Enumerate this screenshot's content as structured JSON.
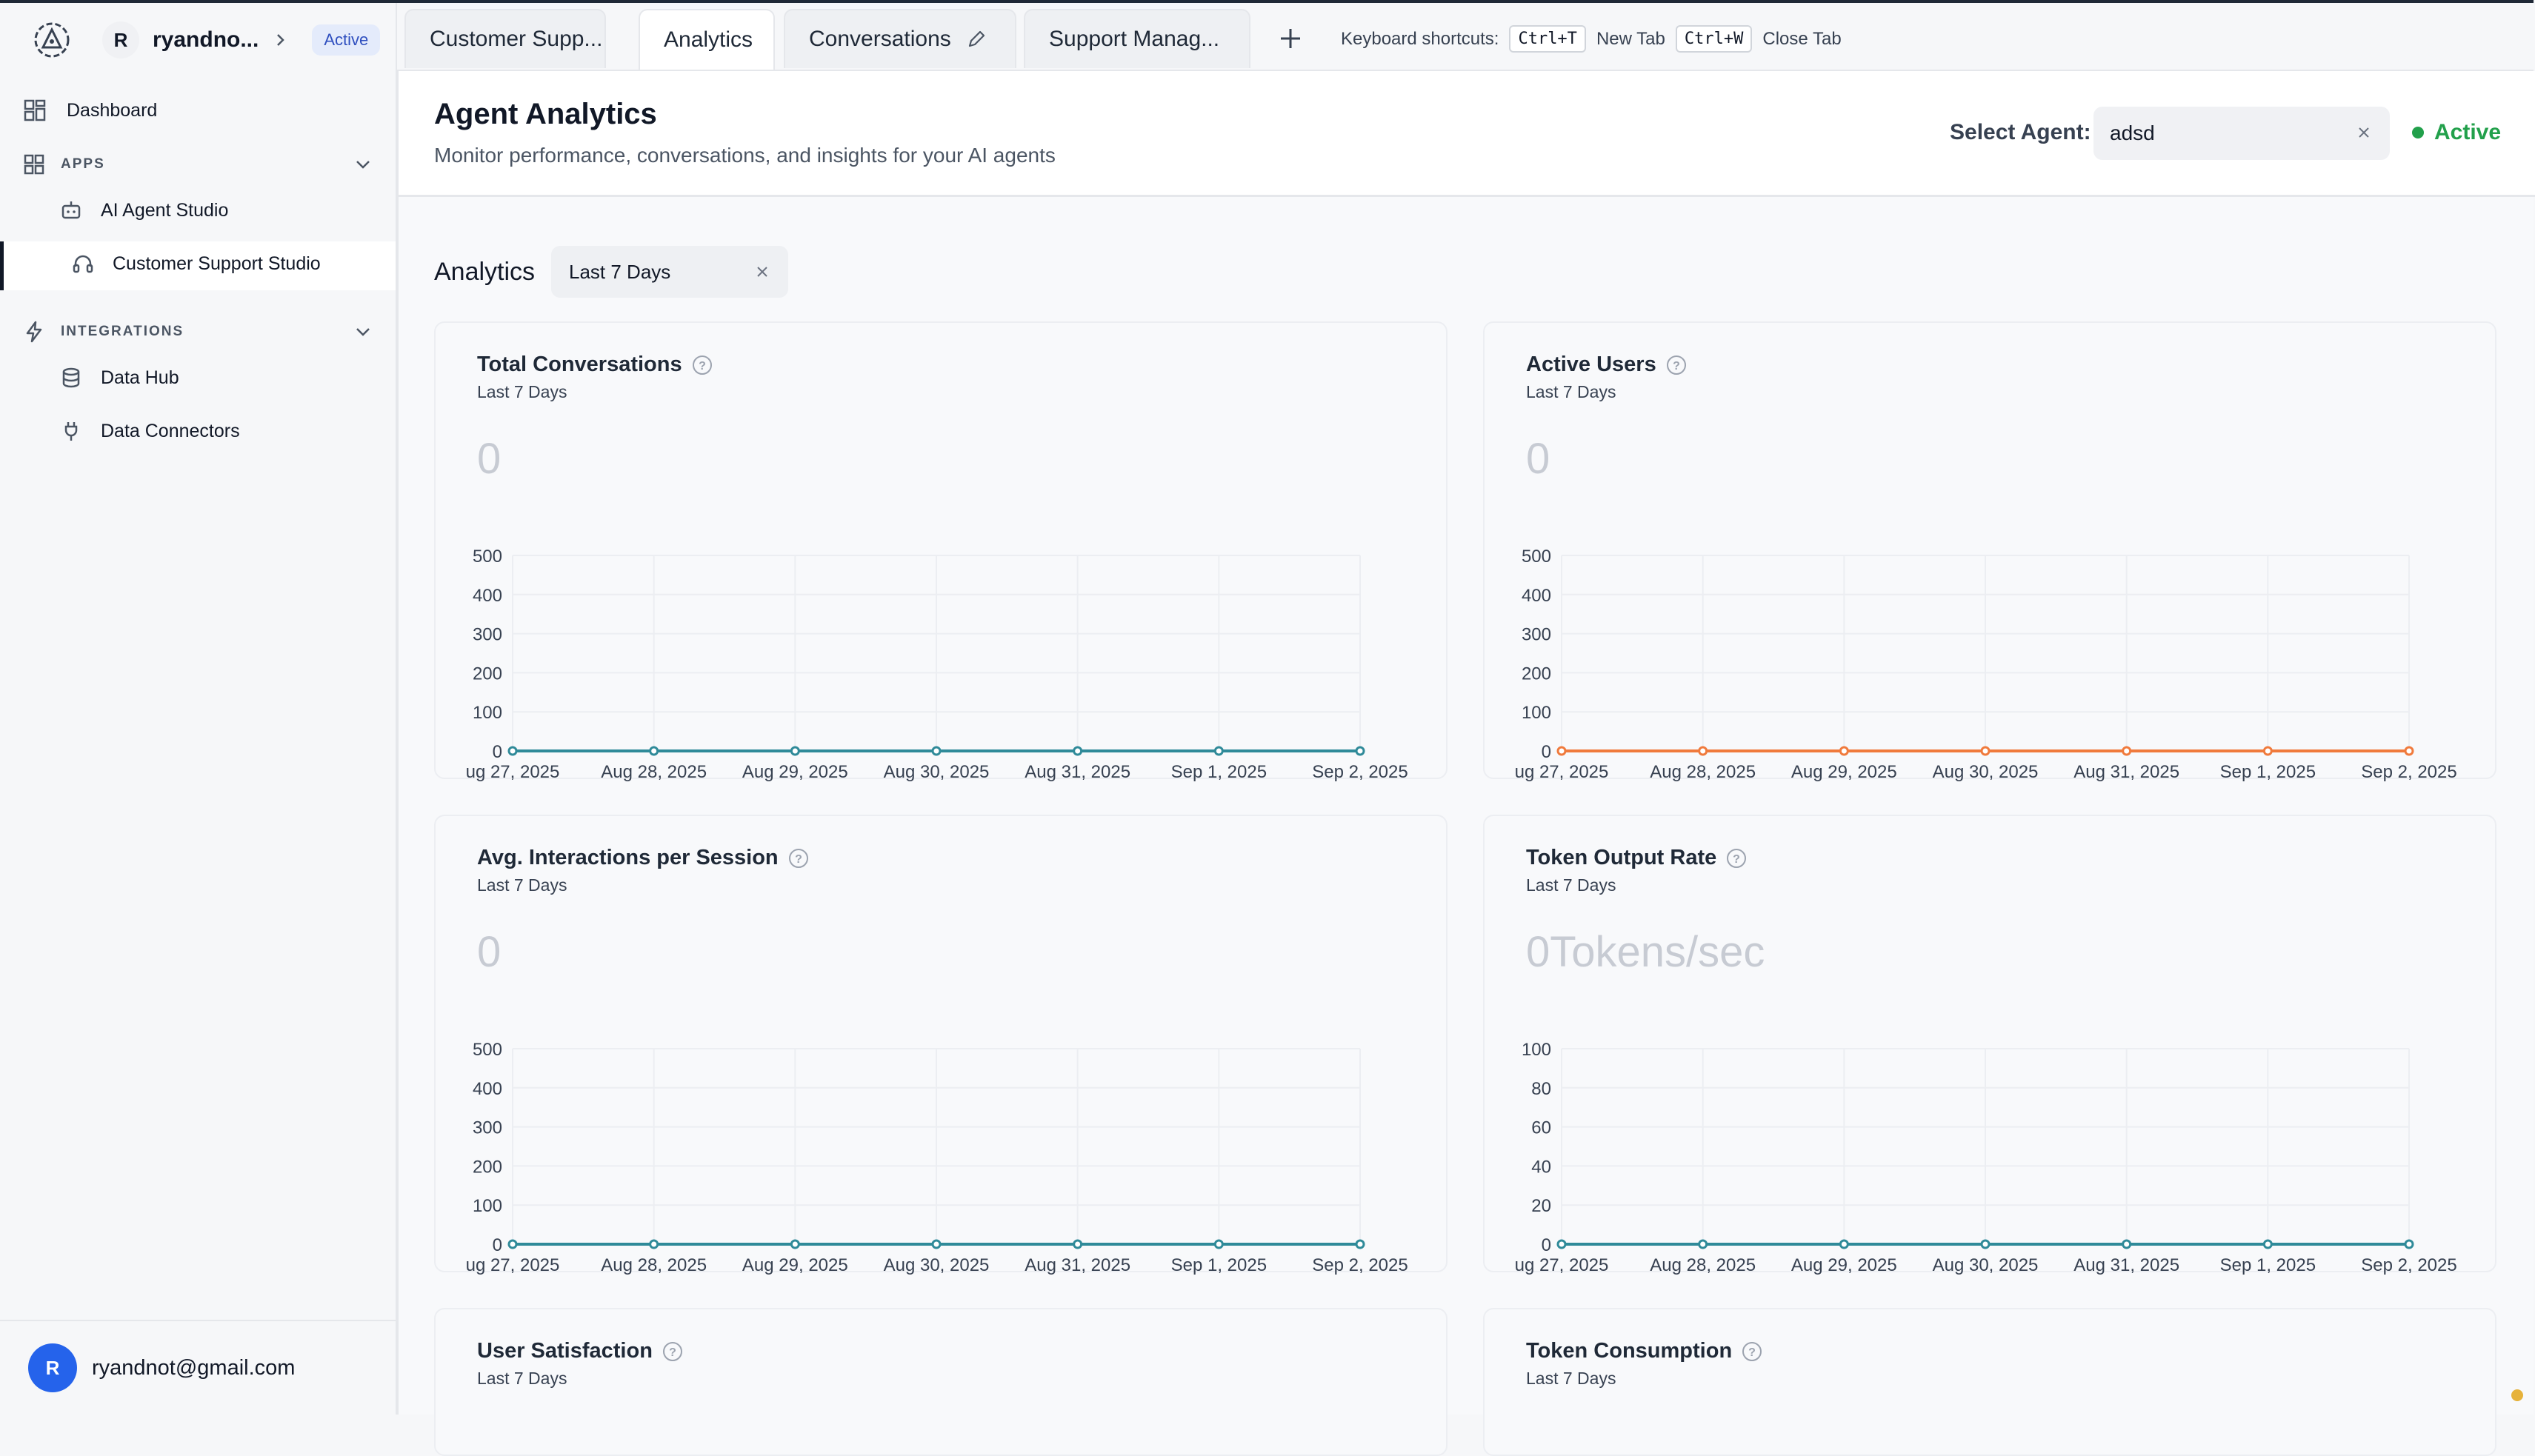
{
  "sidebar": {
    "workspace": {
      "initial": "R",
      "name": "ryandno...",
      "badge": "Active"
    },
    "dashboard_label": "Dashboard",
    "apps_label": "APPS",
    "apps_items": [
      {
        "label": "AI Agent Studio"
      },
      {
        "label": "Customer Support Studio"
      }
    ],
    "integrations_label": "INTEGRATIONS",
    "integrations_items": [
      {
        "label": "Data Hub"
      },
      {
        "label": "Data Connectors"
      }
    ],
    "user": {
      "initial": "R",
      "email": "ryandnot@gmail.com"
    }
  },
  "tabs": [
    {
      "label": "Customer Supp..."
    },
    {
      "label": "Analytics"
    },
    {
      "label": "Conversations"
    },
    {
      "label": "Support Manag..."
    }
  ],
  "shortcuts": {
    "label": "Keyboard shortcuts:",
    "new_key": "Ctrl+T",
    "new_label": "New Tab",
    "close_key": "Ctrl+W",
    "close_label": "Close Tab"
  },
  "header": {
    "title": "Agent Analytics",
    "subtitle": "Monitor performance, conversations, and insights for your AI agents",
    "select_label": "Select Agent:",
    "select_value": "adsd",
    "status": "Active"
  },
  "analytics": {
    "label": "Analytics",
    "period": "Last 7 Days"
  },
  "colors": {
    "teal": "#2f8a99",
    "orange": "#f07a3c",
    "status_green": "#22a04b"
  },
  "chart_data": [
    {
      "type": "line",
      "title": "Total Conversations",
      "subtitle": "Last 7 Days",
      "value": "0",
      "categories": [
        "ug 27, 2025",
        "Aug 28, 2025",
        "Aug 29, 2025",
        "Aug 30, 2025",
        "Aug 31, 2025",
        "Sep 1, 2025",
        "Sep 2, 2025"
      ],
      "values": [
        0,
        0,
        0,
        0,
        0,
        0,
        0
      ],
      "yticks": [
        0,
        100,
        200,
        300,
        400,
        500
      ],
      "ylim": [
        0,
        500
      ],
      "color": "#2f8a99"
    },
    {
      "type": "line",
      "title": "Active Users",
      "subtitle": "Last 7 Days",
      "value": "0",
      "categories": [
        "ug 27, 2025",
        "Aug 28, 2025",
        "Aug 29, 2025",
        "Aug 30, 2025",
        "Aug 31, 2025",
        "Sep 1, 2025",
        "Sep 2, 2025"
      ],
      "values": [
        0,
        0,
        0,
        0,
        0,
        0,
        0
      ],
      "yticks": [
        0,
        100,
        200,
        300,
        400,
        500
      ],
      "ylim": [
        0,
        500
      ],
      "color": "#f07a3c"
    },
    {
      "type": "line",
      "title": "Avg. Interactions per Session",
      "subtitle": "Last 7 Days",
      "value": "0",
      "categories": [
        "ug 27, 2025",
        "Aug 28, 2025",
        "Aug 29, 2025",
        "Aug 30, 2025",
        "Aug 31, 2025",
        "Sep 1, 2025",
        "Sep 2, 2025"
      ],
      "values": [
        0,
        0,
        0,
        0,
        0,
        0,
        0
      ],
      "yticks": [
        0,
        100,
        200,
        300,
        400,
        500
      ],
      "ylim": [
        0,
        500
      ],
      "color": "#2f8a99"
    },
    {
      "type": "line",
      "title": "Token Output Rate",
      "subtitle": "Last 7 Days",
      "value": "0Tokens/sec",
      "categories": [
        "ug 27, 2025",
        "Aug 28, 2025",
        "Aug 29, 2025",
        "Aug 30, 2025",
        "Aug 31, 2025",
        "Sep 1, 2025",
        "Sep 2, 2025"
      ],
      "values": [
        0,
        0,
        0,
        0,
        0,
        0,
        0
      ],
      "yticks": [
        0,
        20,
        40,
        60,
        80,
        100
      ],
      "ylim": [
        0,
        100
      ],
      "color": "#2f8a99"
    }
  ],
  "more_cards": [
    {
      "title": "User Satisfaction",
      "subtitle": "Last 7 Days"
    },
    {
      "title": "Token Consumption",
      "subtitle": "Last 7 Days"
    }
  ]
}
